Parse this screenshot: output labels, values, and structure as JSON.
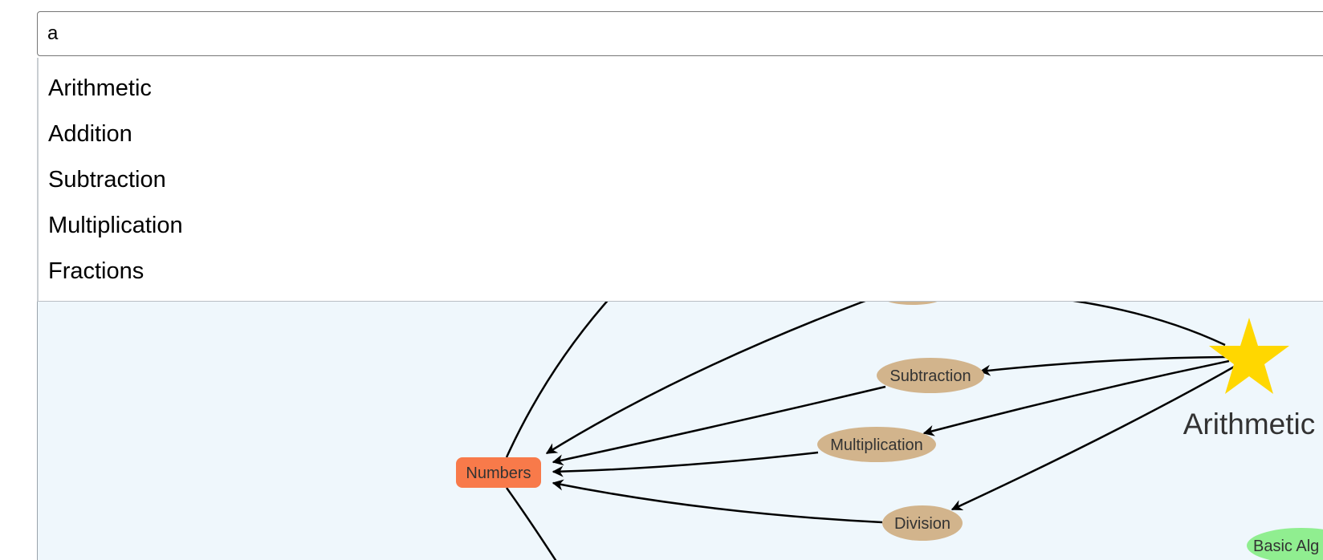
{
  "search": {
    "value": "a",
    "placeholder": ""
  },
  "suggestions": [
    {
      "label": "Arithmetic"
    },
    {
      "label": "Addition"
    },
    {
      "label": "Subtraction"
    },
    {
      "label": "Multiplication"
    },
    {
      "label": "Fractions"
    }
  ],
  "graph": {
    "colors": {
      "canvas": "#eff7fc",
      "operation_node": "#d2b48c",
      "root_node": "#f87a4a",
      "star_node": "#ffd700",
      "topic_node": "#90ee90",
      "edge": "#000000"
    },
    "nodes": {
      "numbers": {
        "label": "Numbers",
        "shape": "rounded-rect"
      },
      "subtraction": {
        "label": "Subtraction",
        "shape": "ellipse"
      },
      "multiplication": {
        "label": "Multiplication",
        "shape": "ellipse"
      },
      "division": {
        "label": "Division",
        "shape": "ellipse"
      },
      "arithmetic": {
        "label": "Arithmetic",
        "shape": "star-icon"
      },
      "basic_algebra": {
        "label": "Basic Alg",
        "shape": "ellipse"
      }
    }
  }
}
